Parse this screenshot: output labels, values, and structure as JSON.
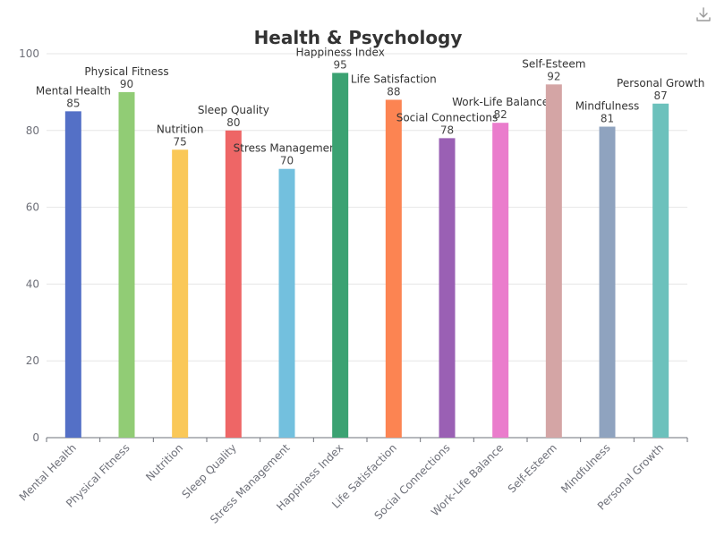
{
  "toolbar": {
    "download_icon": "download-icon"
  },
  "chart_data": {
    "type": "bar",
    "title": "Health & Psychology",
    "xlabel": "",
    "ylabel": "",
    "categories": [
      "Mental Health",
      "Physical Fitness",
      "Nutrition",
      "Sleep Quality",
      "Stress Management",
      "Happiness Index",
      "Life Satisfaction",
      "Social Connections",
      "Work-Life Balance",
      "Self-Esteem",
      "Mindfulness",
      "Personal Growth"
    ],
    "values": [
      85,
      90,
      75,
      80,
      70,
      95,
      88,
      78,
      82,
      92,
      81,
      87
    ],
    "colors": [
      "#5470c6",
      "#91cc75",
      "#fac858",
      "#ee6666",
      "#73c0de",
      "#3ba272",
      "#fc8452",
      "#9a60b4",
      "#ea7ccc",
      "#d4a5a5",
      "#8fa3bf",
      "#6cc1bc"
    ],
    "ylim": [
      0,
      100
    ],
    "yticks": [
      0,
      20,
      40,
      60,
      80,
      100
    ],
    "grid": "horizontal",
    "legend": "none"
  }
}
